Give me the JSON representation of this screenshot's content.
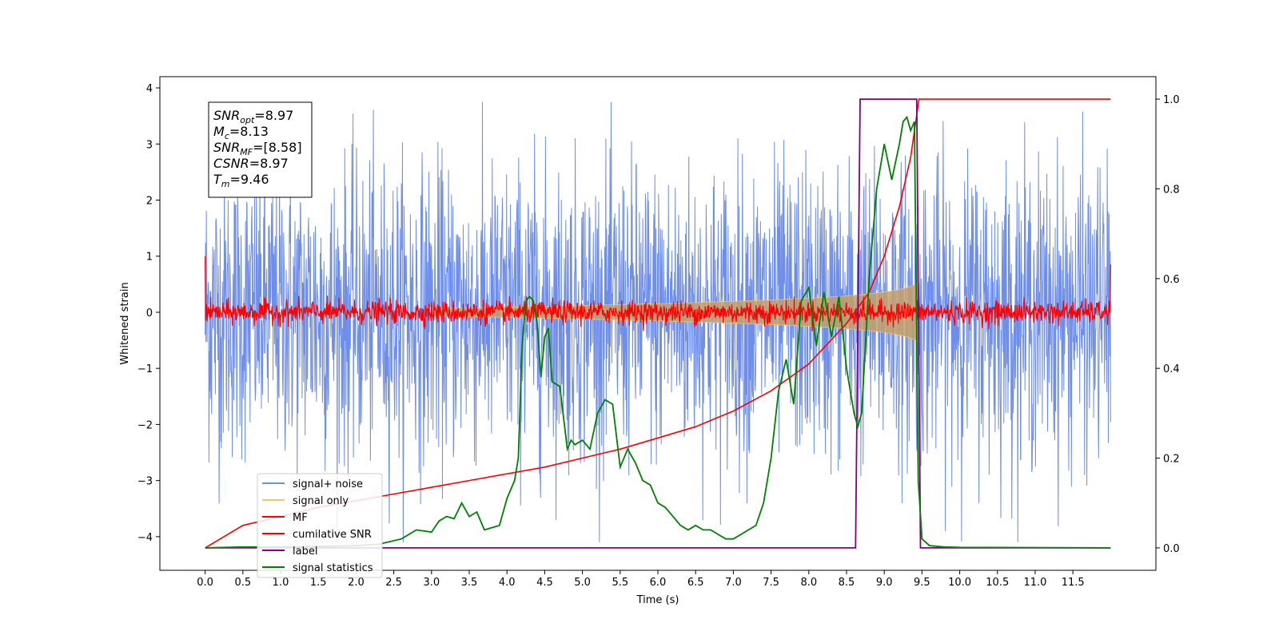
{
  "chart_data": {
    "type": "line",
    "title": "",
    "xlabel": "Time (s)",
    "ylabel_left": "Whitened strain",
    "ylabel_right": "",
    "xlim": [
      -0.6,
      12.6
    ],
    "ylim_left": [
      -4.6,
      4.2
    ],
    "ylim_right": [
      -0.05,
      1.05
    ],
    "x_ticks": [
      "0.0",
      "0.5",
      "1.0",
      "1.5",
      "2.0",
      "2.5",
      "3.0",
      "3.5",
      "4.0",
      "4.5",
      "5.0",
      "5.5",
      "6.0",
      "6.5",
      "7.0",
      "7.5",
      "8.0",
      "8.5",
      "9.0",
      "9.5",
      "10.0",
      "10.5",
      "11.0",
      "11.5"
    ],
    "y_ticks_left": [
      "4",
      "3",
      "2",
      "1",
      "0",
      "−1",
      "−2",
      "−3",
      "−4"
    ],
    "y_ticks_right": [
      "1.0",
      "0.8",
      "0.6",
      "0.4",
      "0.2",
      "0.0"
    ],
    "grid": false,
    "legend_position": "lower-left",
    "stats": [
      {
        "main": "SNR",
        "sub": "opt",
        "value": "=8.97"
      },
      {
        "main": "M",
        "sub": "c",
        "value": "=8.13"
      },
      {
        "main": "SNR",
        "sub": "MF",
        "value": "=[8.58]"
      },
      {
        "main": "CSNR",
        "sub": "",
        "value": "=8.97"
      },
      {
        "main": "T",
        "sub": "m",
        "value": "=9.46"
      }
    ],
    "series": [
      {
        "name": "signal+ noise",
        "color": "#6f8ee8",
        "axis": "left",
        "kind": "noise",
        "amplitude": 1.3
      },
      {
        "name": "signal only",
        "color": "#f5c36b",
        "axis": "left",
        "kind": "chirp",
        "t_merge": 9.46
      },
      {
        "name": "MF",
        "color": "#ff0000",
        "axis": "left",
        "kind": "noise",
        "amplitude": 0.1
      },
      {
        "name": "cumilative SNR",
        "color": "#ff0000",
        "axis": "right",
        "x": [
          0.0,
          0.5,
          1.0,
          1.5,
          2.0,
          2.5,
          3.0,
          3.5,
          4.0,
          4.5,
          5.0,
          5.5,
          6.0,
          6.5,
          7.0,
          7.5,
          8.0,
          8.5,
          8.8,
          9.0,
          9.2,
          9.35,
          9.46,
          12.0
        ],
        "values": [
          0.0,
          0.05,
          0.07,
          0.09,
          0.105,
          0.12,
          0.135,
          0.15,
          0.165,
          0.18,
          0.2,
          0.22,
          0.245,
          0.27,
          0.305,
          0.35,
          0.41,
          0.5,
          0.57,
          0.65,
          0.76,
          0.87,
          1.0,
          1.0
        ]
      },
      {
        "name": "label",
        "color": "#800080",
        "axis": "right",
        "x": [
          0.0,
          8.62,
          8.68,
          9.43,
          9.48,
          12.0
        ],
        "values": [
          0.0,
          0.0,
          1.0,
          1.0,
          0.0,
          0.0
        ]
      },
      {
        "name": "signal statistics",
        "color": "#008000",
        "axis": "right",
        "x": [
          0.0,
          0.5,
          1.0,
          1.5,
          2.0,
          2.3,
          2.6,
          2.8,
          3.0,
          3.1,
          3.2,
          3.3,
          3.4,
          3.5,
          3.6,
          3.7,
          3.8,
          3.9,
          4.0,
          4.1,
          4.15,
          4.2,
          4.25,
          4.3,
          4.35,
          4.4,
          4.45,
          4.5,
          4.55,
          4.6,
          4.7,
          4.8,
          4.85,
          4.9,
          5.0,
          5.1,
          5.2,
          5.3,
          5.4,
          5.5,
          5.6,
          5.7,
          5.8,
          5.9,
          6.0,
          6.1,
          6.3,
          6.4,
          6.5,
          6.6,
          6.7,
          6.8,
          6.9,
          7.0,
          7.1,
          7.2,
          7.3,
          7.4,
          7.5,
          7.6,
          7.7,
          7.8,
          7.9,
          8.0,
          8.1,
          8.2,
          8.3,
          8.4,
          8.5,
          8.6,
          8.65,
          8.7,
          8.8,
          8.9,
          9.0,
          9.1,
          9.2,
          9.25,
          9.3,
          9.35,
          9.4,
          9.45,
          9.5,
          9.6,
          9.8,
          10.0,
          12.0
        ],
        "values": [
          0.0,
          0.002,
          0.002,
          0.003,
          0.005,
          0.008,
          0.02,
          0.04,
          0.035,
          0.06,
          0.07,
          0.065,
          0.1,
          0.07,
          0.08,
          0.04,
          0.045,
          0.05,
          0.11,
          0.15,
          0.2,
          0.45,
          0.55,
          0.56,
          0.55,
          0.5,
          0.38,
          0.47,
          0.49,
          0.37,
          0.36,
          0.22,
          0.24,
          0.23,
          0.24,
          0.22,
          0.3,
          0.33,
          0.32,
          0.18,
          0.22,
          0.19,
          0.15,
          0.14,
          0.1,
          0.09,
          0.05,
          0.04,
          0.05,
          0.04,
          0.04,
          0.03,
          0.02,
          0.02,
          0.03,
          0.04,
          0.05,
          0.1,
          0.2,
          0.35,
          0.42,
          0.32,
          0.55,
          0.58,
          0.45,
          0.57,
          0.47,
          0.56,
          0.4,
          0.3,
          0.27,
          0.3,
          0.6,
          0.8,
          0.9,
          0.82,
          0.9,
          0.95,
          0.96,
          0.93,
          0.95,
          0.15,
          0.02,
          0.005,
          0.002,
          0.001,
          0.0
        ]
      }
    ]
  }
}
